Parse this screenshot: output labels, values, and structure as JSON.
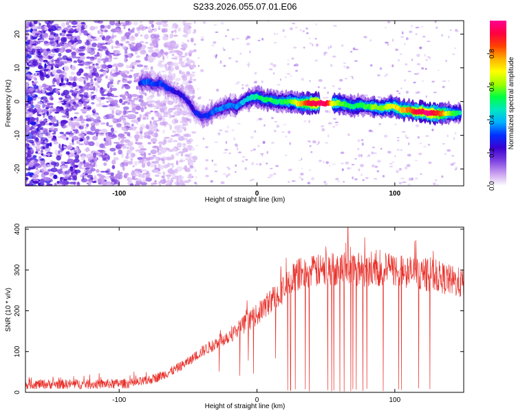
{
  "title": "S233.2026.055.07.01.E06",
  "chart_data": [
    {
      "type": "heatmap",
      "description_free": true,
      "xlabel": "Height of straight line (km)",
      "ylabel": "Frequency (Hz)",
      "xlim": [
        -168,
        150
      ],
      "ylim": [
        -25,
        24
      ],
      "x_ticks": [
        -100,
        0,
        100
      ],
      "x_tick_labels": [
        "-100",
        "0",
        "100"
      ],
      "y_ticks": [
        20,
        10,
        0,
        -10,
        -20
      ],
      "y_tick_labels": [
        "20",
        "10",
        "0",
        "-10",
        "-20"
      ],
      "colorbar": {
        "label": "Normalized spectral amplitude",
        "range": [
          0.0,
          1.0
        ],
        "ticks": [
          0.0,
          0.2,
          0.4,
          0.6,
          0.8
        ],
        "tick_labels": [
          "0.0",
          "0.2",
          "0.4",
          "0.6",
          "0.8"
        ],
        "colors": [
          "#ffffff",
          "#c89cf0",
          "#7b3fe0",
          "#3a00d0",
          "#0030ff",
          "#00b0ff",
          "#00e8c0",
          "#00ff40",
          "#a0ff00",
          "#ffff00",
          "#ffb000",
          "#ff4000",
          "#ff0040",
          "#ff0090"
        ]
      },
      "ridge": {
        "x": [
          -85,
          -80,
          -75,
          -70,
          -65,
          -60,
          -55,
          -50,
          -45,
          -40,
          -35,
          -30,
          -25,
          -20,
          -15,
          -10,
          -5,
          0,
          5,
          10,
          15,
          20,
          25,
          30,
          40,
          50,
          55,
          60,
          65,
          70,
          75,
          80,
          85,
          90,
          95,
          100,
          105,
          110,
          115,
          120,
          125,
          130,
          135,
          140,
          148
        ],
        "freq_hz": [
          5.5,
          6,
          5,
          5.5,
          4,
          3,
          2,
          0,
          -3,
          -4.5,
          -4,
          -2.5,
          -2,
          -1,
          -1.5,
          0,
          1,
          1.5,
          0.5,
          0.5,
          0,
          0,
          0,
          -0.5,
          -0.5,
          -0.5,
          -0.5,
          -0.5,
          -1,
          -1.5,
          -1,
          -1.5,
          -1.5,
          -2,
          -1.5,
          -1.5,
          -2.5,
          -2.5,
          -3,
          -3,
          -3.5,
          -3.5,
          -3.5,
          -3.5,
          -3.5
        ],
        "amplitude": [
          0.25,
          0.35,
          0.3,
          0.3,
          0.3,
          0.25,
          0.25,
          0.25,
          0.25,
          0.3,
          0.3,
          0.35,
          0.35,
          0.35,
          0.35,
          0.4,
          0.45,
          0.5,
          0.5,
          0.55,
          0.5,
          0.55,
          0.6,
          0.7,
          0.95,
          0.95,
          0.7,
          0.6,
          0.55,
          0.5,
          0.55,
          0.55,
          0.6,
          0.6,
          0.65,
          0.7,
          0.75,
          0.8,
          0.9,
          0.95,
          1.0,
          0.9,
          0.8,
          0.6,
          0.5
        ],
        "gap_x": [
          45,
          55
        ]
      },
      "noise": {
        "region_x": [
          -168,
          -55
        ],
        "amplitude_range": [
          0.0,
          0.3
        ]
      }
    },
    {
      "type": "line",
      "xlabel": "Height of straight line (km)",
      "ylabel": "SNR (10 * v/v)",
      "xlim": [
        -168,
        150
      ],
      "ylim": [
        0,
        405
      ],
      "x_ticks": [
        -100,
        0,
        100
      ],
      "x_tick_labels": [
        "-100",
        "0",
        "100"
      ],
      "y_ticks": [
        0,
        100,
        200,
        300,
        400
      ],
      "y_tick_labels": [
        "0",
        "100",
        "200",
        "300",
        "400"
      ],
      "line_color": "#e8302a",
      "trend": {
        "x": [
          -168,
          -120,
          -90,
          -80,
          -70,
          -60,
          -50,
          -40,
          -30,
          -20,
          -10,
          0,
          10,
          20,
          25,
          30,
          40,
          50,
          60,
          70,
          80,
          90,
          100,
          110,
          120,
          130,
          140,
          150
        ],
        "snr_mean": [
          20,
          20,
          22,
          28,
          40,
          55,
          75,
          100,
          120,
          140,
          165,
          190,
          225,
          255,
          275,
          290,
          295,
          300,
          305,
          305,
          300,
          300,
          300,
          295,
          290,
          285,
          275,
          265
        ],
        "snr_peak": 405,
        "snr_peak_x": 66
      },
      "dropouts": {
        "x_range": [
          20,
          127
        ],
        "min_snr": 2
      }
    }
  ]
}
